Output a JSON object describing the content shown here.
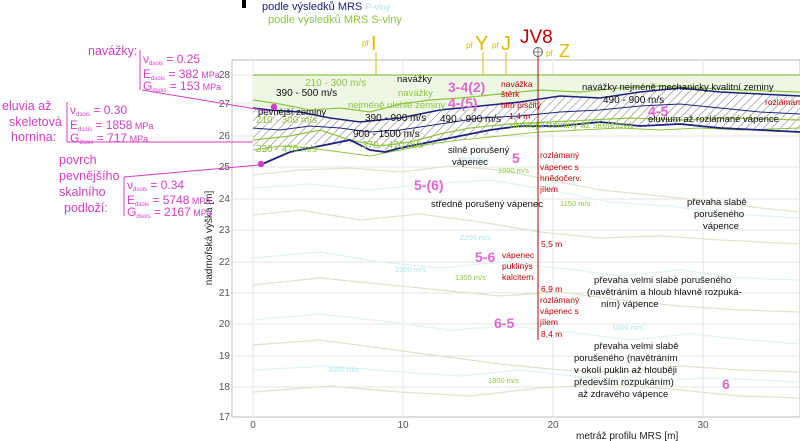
{
  "legend": {
    "line1": "podle výsledků MRS",
    "line1_suffix": "P-vlny",
    "line2": "podle výsledků MRS S-vlny"
  },
  "markers": [
    {
      "id": "pfI",
      "prefix": "pf",
      "label": "I",
      "color": "#e6b800"
    },
    {
      "id": "pfY",
      "prefix": "pf",
      "label": "Y",
      "color": "#e6b800"
    },
    {
      "id": "pfJ",
      "prefix": "pf",
      "label": "J",
      "color": "#e6b800"
    },
    {
      "id": "pfZ",
      "prefix": "pf",
      "label": "Z",
      "color": "#e6b800"
    },
    {
      "id": "jv8",
      "label": "JV8",
      "color": "#c00000"
    }
  ],
  "axes": {
    "ylabel": "nadmořská výška [m]",
    "xlabel": "metráž profilu MRS [m]",
    "yticks": [
      "17",
      "18",
      "19",
      "20",
      "21",
      "22",
      "23",
      "24",
      "25",
      "26",
      "27",
      "28"
    ],
    "xticks": [
      "0",
      "10",
      "20",
      "30"
    ]
  },
  "left_params": [
    {
      "title": "navážky:",
      "nu": "0.25",
      "E": "382",
      "G": "153"
    },
    {
      "title": "eluvia až skeletová hornina:",
      "title_lines": [
        "eluvia až",
        "skeletová",
        "hornina:"
      ],
      "nu": "0.30",
      "E": "1858",
      "G": "717"
    },
    {
      "title_lines": [
        "povrch",
        "pevnějšího",
        "skalního",
        "podloží:"
      ],
      "nu": "0.34",
      "E": "5748",
      "G": "2167"
    }
  ],
  "param_labels": {
    "nu": "ν",
    "nu_sub": "dsois",
    "E": "E",
    "E_sub": "dsois",
    "G": "G",
    "G_sub": "dsois",
    "unit": "MPa"
  },
  "velocity_labels_black": [
    "390 - 500 m/s",
    "390 - 900 m/s",
    "900 - 1500 m/s",
    "490 - 900 m/s"
  ],
  "velocity_labels_green": [
    "210 - 300 m/s",
    "210 - 300 m/s",
    "320 - 470 m/s",
    "370 - 470 m/s"
  ],
  "zone_labels_black": [
    "navážky",
    "pevnější zeminy",
    "navážky nejméně mechanicky kvalitní zeminy",
    "eluvium až rozlámané vápence",
    "silně porušený vápenec",
    "středně porušený vápenec",
    "převaha slabě porušeného vápence",
    "převaha velmi slabě porušeného (navětráním a hloub hlavně rozpukáním) vápence",
    "převaha velmi slabě porušeného (navětráním v okolí puklin až hloubějí především rozpukáním) až zdravého vápence"
  ],
  "zone_labels_green": [
    "navážky",
    "nejméně ulehlé zeminy",
    "ulehlejší zeminy až skeletová"
  ],
  "zone_numbers": [
    "3-4(2)",
    "4-(5)",
    "4-5",
    "5",
    "5-(6)",
    "5-6",
    "6-5",
    "6"
  ],
  "borehole": [
    {
      "text": "navážka",
      "depth": ""
    },
    {
      "text": "štěrk",
      "depth": ""
    },
    {
      "text": "hlín písčitý",
      "depth": "1,4 m"
    },
    {
      "text": "rozlámaný vápenec s hnědočerv. jílem",
      "depth": "5,5 m"
    },
    {
      "text": "vápenec pukliný s kalcitem",
      "depth": "6,9 m"
    },
    {
      "text": "rozlámaný vápenec s jílem",
      "depth": "8,4 m"
    },
    {
      "text": "rozlámanýž",
      "depth": ""
    }
  ],
  "isoline_labels": [
    "1000 m/s",
    "1150 m/s",
    "1300 m/s",
    "2300 m/s",
    "1600 m/s",
    "3500 m/s",
    "1800 m/s",
    "2200 m/s",
    "1500 m/s"
  ],
  "colors": {
    "magenta": "#d63cc8",
    "green": "#8cc63f",
    "navy": "#1a237e",
    "red": "#c00000",
    "pink": "#e066d0",
    "cyan": "#a8e6ee",
    "gold": "#e6b800"
  }
}
